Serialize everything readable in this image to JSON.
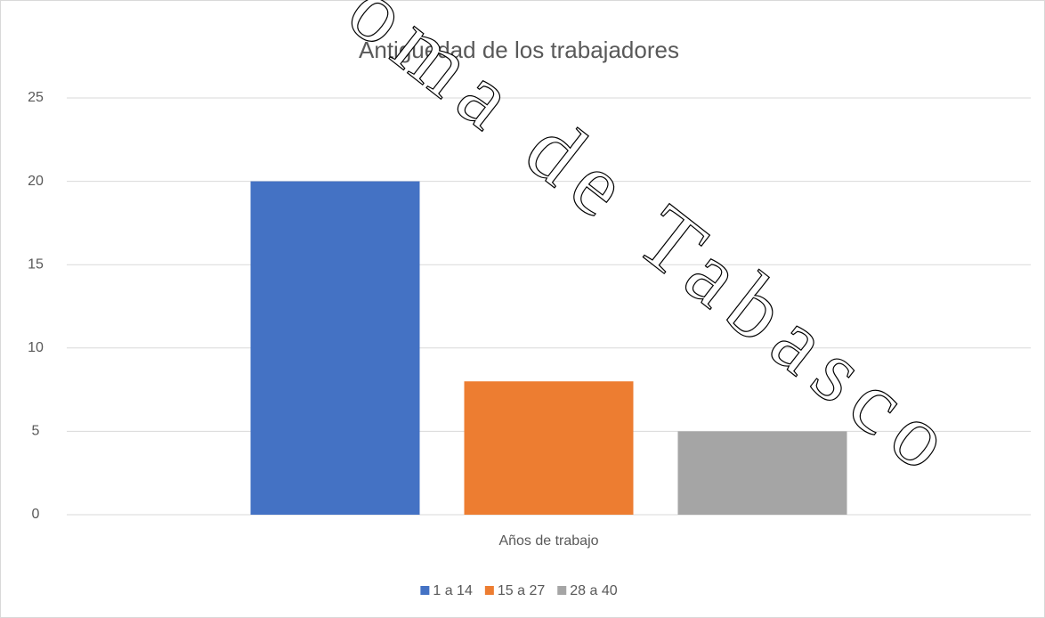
{
  "chart_data": {
    "type": "bar",
    "title": "Antiguedad de los trabajadores",
    "categories": [
      "Años de trabajo"
    ],
    "series": [
      {
        "name": "1 a 14",
        "color": "#4472c4",
        "values": [
          20
        ]
      },
      {
        "name": "15 a 27",
        "color": "#ed7d31",
        "values": [
          8
        ]
      },
      {
        "name": "28 a 40",
        "color": "#a5a5a5",
        "values": [
          5
        ]
      }
    ],
    "ylim": [
      0,
      25
    ],
    "yticks": [
      0,
      5,
      10,
      15,
      20,
      25
    ],
    "grid": true,
    "legend": "bottom",
    "watermark": "oma de Tabasco"
  }
}
